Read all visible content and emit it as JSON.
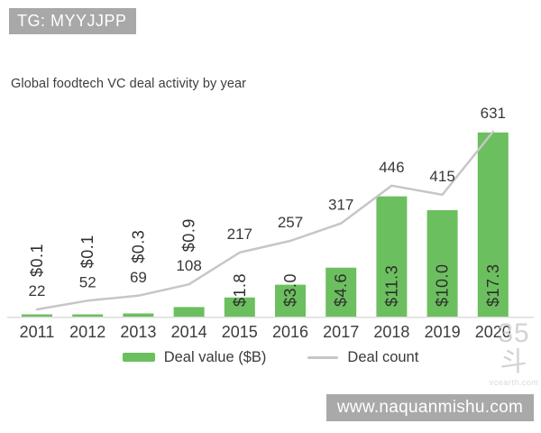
{
  "header": {
    "badge_label": "TG: MYYJJPP"
  },
  "chart_data": {
    "type": "bar",
    "title": "Global foodtech VC deal activity by year",
    "categories": [
      "2011",
      "2012",
      "2013",
      "2014",
      "2015",
      "2016",
      "2017",
      "2018",
      "2019",
      "2020"
    ],
    "series": [
      {
        "name": "Deal value ($B)",
        "type": "bar",
        "values": [
          0.1,
          0.1,
          0.3,
          0.9,
          1.8,
          3.0,
          4.6,
          11.3,
          10.0,
          17.3
        ],
        "data_labels": [
          "$0.1",
          "$0.1",
          "$0.3",
          "$0.9",
          "$1.8",
          "$3.0",
          "$4.6",
          "$11.3",
          "$10.0",
          "$17.3"
        ],
        "color": "#6cbf5e"
      },
      {
        "name": "Deal count",
        "type": "line",
        "values": [
          22,
          52,
          69,
          108,
          217,
          257,
          317,
          446,
          415,
          631
        ],
        "color": "#c6c6c6"
      }
    ],
    "xlabel": "",
    "ylabel": "",
    "value_axis_visible": false,
    "grid": false,
    "legend_position": "bottom",
    "data_label_orientation": "vertical",
    "baseline_color": "#dcdcdc"
  },
  "watermark": {
    "logo_text": "35斗",
    "site_text": "vcearth.com"
  },
  "footer": {
    "url_label": "www.naquanmishu.com"
  }
}
